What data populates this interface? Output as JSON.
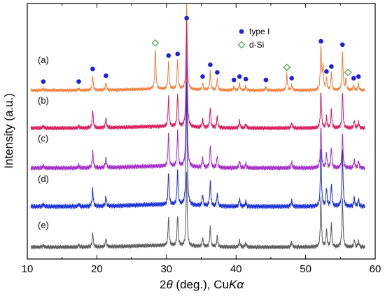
{
  "chart_data": {
    "type": "line",
    "xlabel": "2θ (deg.), CuKα",
    "xlabel_parts": [
      "2",
      "θ",
      " (deg.), Cu",
      "K",
      "α"
    ],
    "ylabel": "Intensity (a.u.)",
    "xlim": [
      10,
      60
    ],
    "x_ticks": [
      10,
      20,
      30,
      40,
      50,
      60
    ],
    "y_tick_labels": "none",
    "grid": false,
    "legend_position": "top-right",
    "legend": [
      {
        "label": "type I",
        "marker": "filled-circle",
        "color": "#1f1fe0"
      },
      {
        "label": "d-Si",
        "marker": "open-diamond",
        "color": "#2ca02c"
      }
    ],
    "series": [
      {
        "name": "(a)",
        "color": "#f07f3c",
        "peaks": [
          {
            "x": 12.3,
            "h": 0.02
          },
          {
            "x": 17.4,
            "h": 0.02
          },
          {
            "x": 19.4,
            "h": 0.17
          },
          {
            "x": 21.3,
            "h": 0.09
          },
          {
            "x": 28.4,
            "h": 0.48
          },
          {
            "x": 30.3,
            "h": 0.33
          },
          {
            "x": 31.6,
            "h": 0.35
          },
          {
            "x": 32.9,
            "h": 1.0
          },
          {
            "x": 35.2,
            "h": 0.08
          },
          {
            "x": 36.3,
            "h": 0.22
          },
          {
            "x": 37.3,
            "h": 0.13
          },
          {
            "x": 39.7,
            "h": 0.04
          },
          {
            "x": 40.5,
            "h": 0.08
          },
          {
            "x": 41.4,
            "h": 0.05
          },
          {
            "x": 44.3,
            "h": 0.04
          },
          {
            "x": 47.3,
            "h": 0.19
          },
          {
            "x": 48.0,
            "h": 0.06
          },
          {
            "x": 52.2,
            "h": 0.5
          },
          {
            "x": 52.5,
            "h": 0.28
          },
          {
            "x": 53.0,
            "h": 0.14
          },
          {
            "x": 53.7,
            "h": 0.2
          },
          {
            "x": 55.3,
            "h": 0.46
          },
          {
            "x": 55.8,
            "h": 0.13
          },
          {
            "x": 56.9,
            "h": 0.06
          },
          {
            "x": 57.6,
            "h": 0.08
          }
        ]
      },
      {
        "name": "(b)",
        "color": "#d81b5a",
        "peaks": [
          {
            "x": 12.3,
            "h": 0.02
          },
          {
            "x": 17.4,
            "h": 0.02
          },
          {
            "x": 19.4,
            "h": 0.17
          },
          {
            "x": 21.3,
            "h": 0.09
          },
          {
            "x": 30.3,
            "h": 0.28
          },
          {
            "x": 31.6,
            "h": 0.31
          },
          {
            "x": 32.9,
            "h": 1.0
          },
          {
            "x": 35.2,
            "h": 0.08
          },
          {
            "x": 36.3,
            "h": 0.19
          },
          {
            "x": 37.3,
            "h": 0.11
          },
          {
            "x": 40.5,
            "h": 0.07
          },
          {
            "x": 41.4,
            "h": 0.04
          },
          {
            "x": 48.0,
            "h": 0.05
          },
          {
            "x": 52.2,
            "h": 0.34
          },
          {
            "x": 53.0,
            "h": 0.1
          },
          {
            "x": 53.7,
            "h": 0.17
          },
          {
            "x": 55.3,
            "h": 0.35
          },
          {
            "x": 57.0,
            "h": 0.07
          },
          {
            "x": 57.6,
            "h": 0.06
          }
        ]
      },
      {
        "name": "(c)",
        "color": "#a52cc8",
        "peaks": [
          {
            "x": 12.3,
            "h": 0.02
          },
          {
            "x": 17.4,
            "h": 0.02
          },
          {
            "x": 19.4,
            "h": 0.14
          },
          {
            "x": 21.3,
            "h": 0.08
          },
          {
            "x": 30.3,
            "h": 0.28
          },
          {
            "x": 31.6,
            "h": 0.3
          },
          {
            "x": 32.9,
            "h": 1.0
          },
          {
            "x": 35.2,
            "h": 0.08
          },
          {
            "x": 36.3,
            "h": 0.19
          },
          {
            "x": 37.3,
            "h": 0.1
          },
          {
            "x": 40.5,
            "h": 0.06
          },
          {
            "x": 41.4,
            "h": 0.04
          },
          {
            "x": 48.0,
            "h": 0.05
          },
          {
            "x": 52.2,
            "h": 0.36
          },
          {
            "x": 53.0,
            "h": 0.12
          },
          {
            "x": 53.7,
            "h": 0.17
          },
          {
            "x": 55.3,
            "h": 0.29
          },
          {
            "x": 57.0,
            "h": 0.07
          },
          {
            "x": 57.6,
            "h": 0.06
          }
        ]
      },
      {
        "name": "(d)",
        "color": "#1c2fd6",
        "peaks": [
          {
            "x": 12.3,
            "h": 0.02
          },
          {
            "x": 17.4,
            "h": 0.02
          },
          {
            "x": 19.4,
            "h": 0.14
          },
          {
            "x": 21.3,
            "h": 0.08
          },
          {
            "x": 30.3,
            "h": 0.27
          },
          {
            "x": 31.6,
            "h": 0.28
          },
          {
            "x": 32.9,
            "h": 1.0
          },
          {
            "x": 35.2,
            "h": 0.09
          },
          {
            "x": 36.3,
            "h": 0.2
          },
          {
            "x": 37.3,
            "h": 0.1
          },
          {
            "x": 40.5,
            "h": 0.06
          },
          {
            "x": 41.4,
            "h": 0.04
          },
          {
            "x": 48.0,
            "h": 0.05
          },
          {
            "x": 52.2,
            "h": 0.46
          },
          {
            "x": 53.0,
            "h": 0.15
          },
          {
            "x": 53.7,
            "h": 0.18
          },
          {
            "x": 55.3,
            "h": 0.45
          },
          {
            "x": 57.0,
            "h": 0.07
          },
          {
            "x": 57.6,
            "h": 0.06
          }
        ]
      },
      {
        "name": "(e)",
        "color": "#5a5a5a",
        "peaks": [
          {
            "x": 12.3,
            "h": 0.02
          },
          {
            "x": 17.4,
            "h": 0.02
          },
          {
            "x": 19.4,
            "h": 0.14
          },
          {
            "x": 21.3,
            "h": 0.08
          },
          {
            "x": 30.3,
            "h": 0.27
          },
          {
            "x": 31.6,
            "h": 0.29
          },
          {
            "x": 32.9,
            "h": 0.7
          },
          {
            "x": 35.2,
            "h": 0.08
          },
          {
            "x": 36.3,
            "h": 0.19
          },
          {
            "x": 37.3,
            "h": 0.1
          },
          {
            "x": 40.5,
            "h": 0.06
          },
          {
            "x": 41.4,
            "h": 0.04
          },
          {
            "x": 48.0,
            "h": 0.05
          },
          {
            "x": 52.2,
            "h": 0.46
          },
          {
            "x": 53.0,
            "h": 0.16
          },
          {
            "x": 53.7,
            "h": 0.22
          },
          {
            "x": 55.3,
            "h": 0.46
          },
          {
            "x": 57.0,
            "h": 0.07
          },
          {
            "x": 57.6,
            "h": 0.06
          }
        ]
      }
    ],
    "annotations": {
      "type_I_markers_x": [
        12.3,
        17.4,
        19.4,
        21.3,
        30.3,
        31.6,
        32.9,
        35.2,
        36.3,
        37.3,
        39.7,
        40.5,
        41.4,
        44.3,
        48.0,
        52.2,
        53.0,
        53.7,
        55.3,
        56.9,
        57.6
      ],
      "d_Si_markers_x": [
        28.4,
        47.3,
        56.1
      ]
    }
  }
}
